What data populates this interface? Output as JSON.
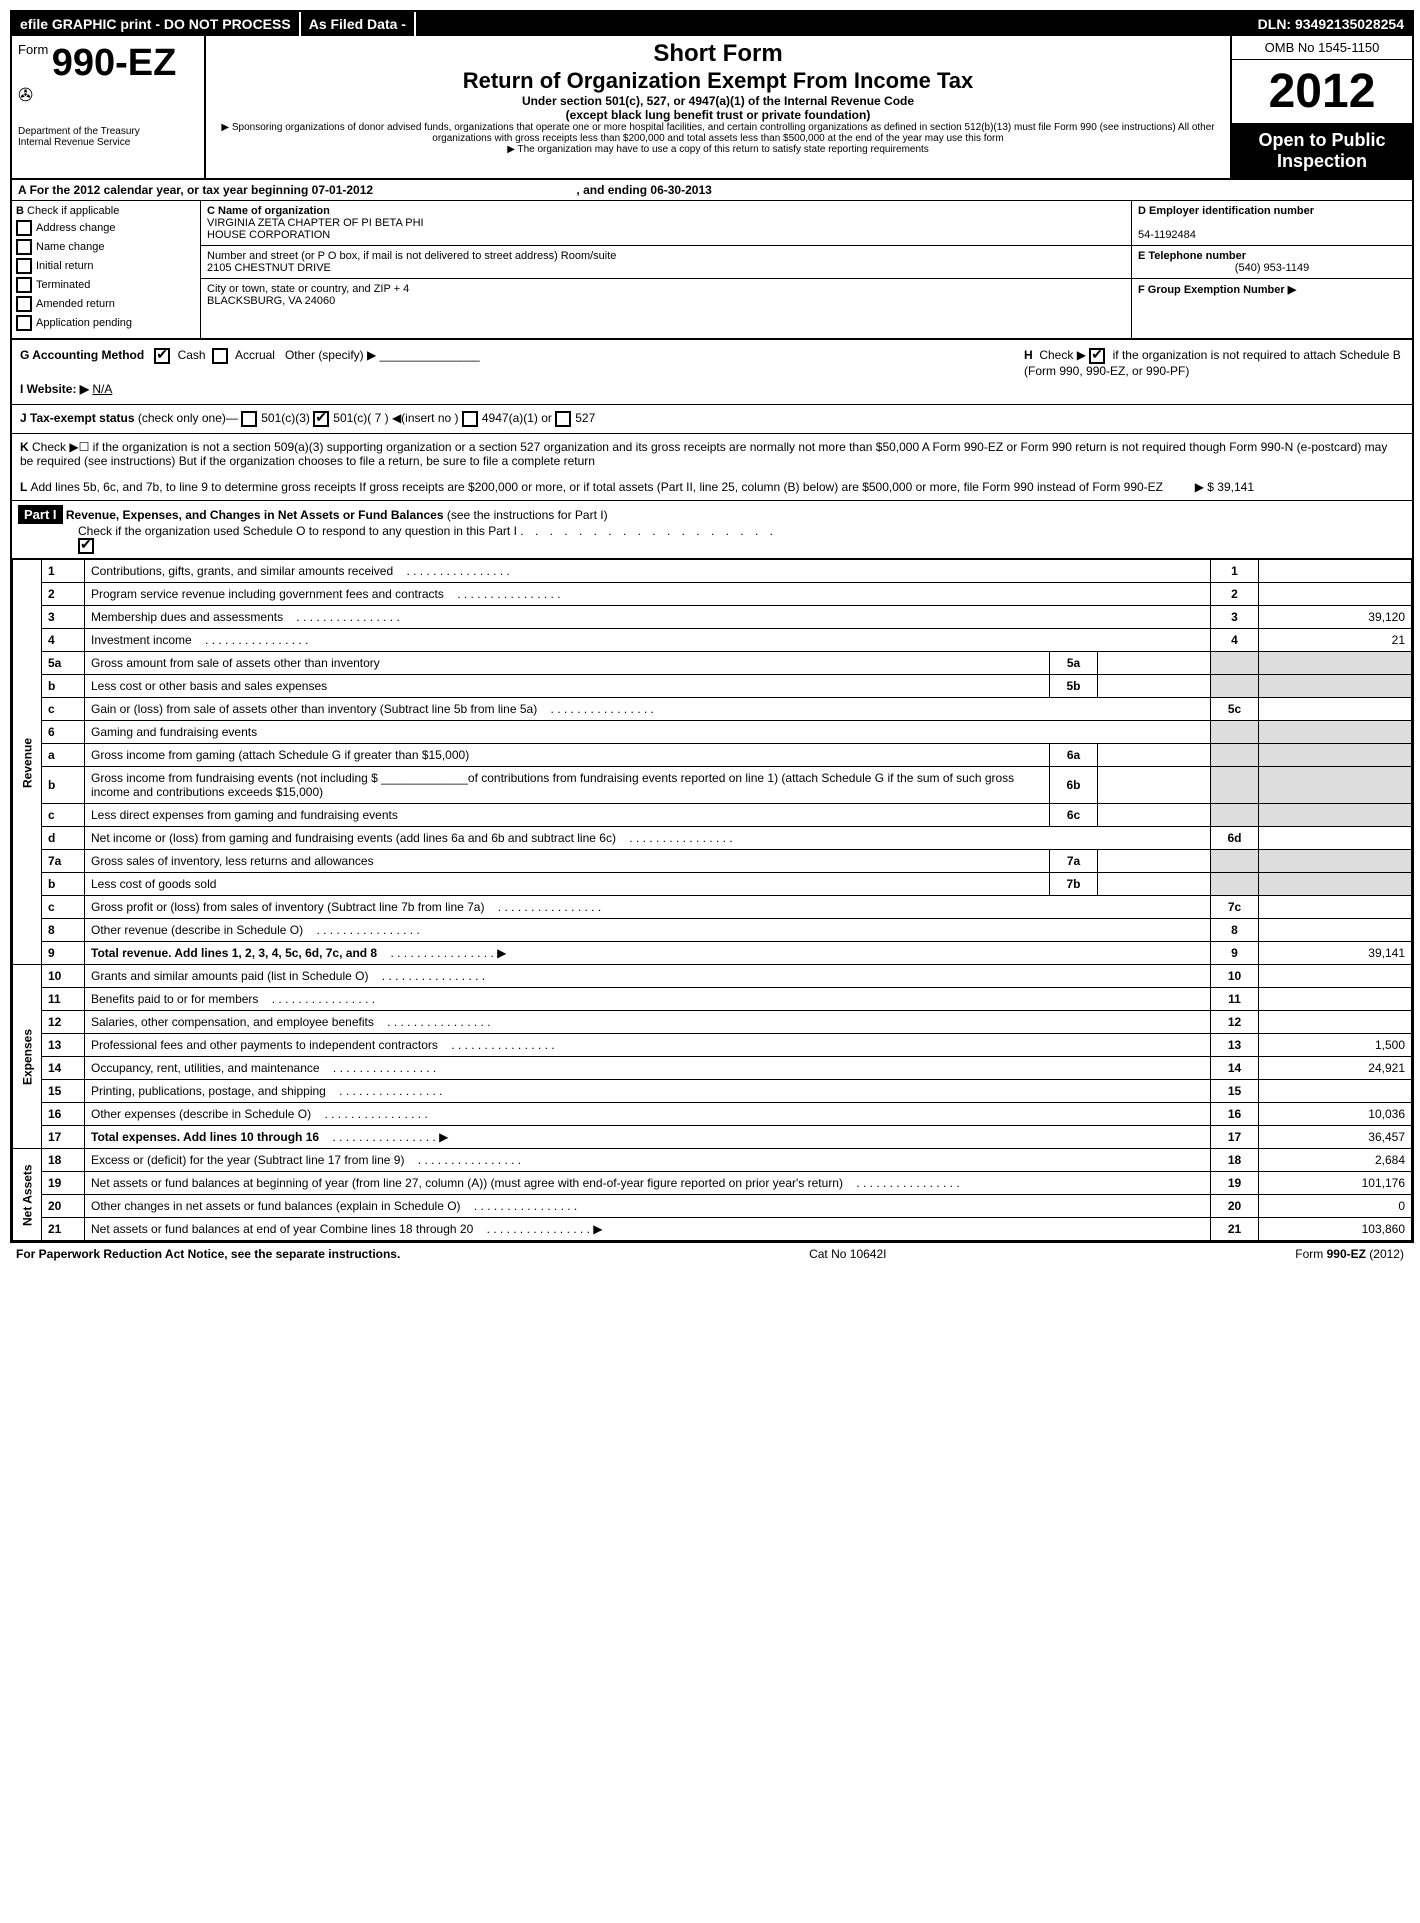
{
  "topbar": {
    "efile": "efile GRAPHIC print - DO NOT PROCESS",
    "asfiled": "As Filed Data -",
    "dln_label": "DLN:",
    "dln": "93492135028254"
  },
  "header": {
    "form_word": "Form",
    "form_number": "990-EZ",
    "dept1": "Department of the Treasury",
    "dept2": "Internal Revenue Service",
    "short_form": "Short Form",
    "main_title": "Return of Organization Exempt From Income Tax",
    "sub1": "Under section 501(c), 527, or 4947(a)(1) of the Internal Revenue Code",
    "sub2": "(except black lung benefit trust or private foundation)",
    "note1": "▶ Sponsoring organizations of donor advised funds, organizations that operate one or more hospital facilities, and certain controlling organizations as defined in section 512(b)(13) must file Form 990 (see instructions) All other organizations with gross receipts less than $200,000 and total assets less than $500,000 at the end of the year may use this form",
    "note2": "▶ The organization may have to use a copy of this return to satisfy state reporting requirements",
    "omb": "OMB No 1545-1150",
    "year": "2012",
    "open": "Open to Public Inspection"
  },
  "rowA": {
    "text": "For the 2012 calendar year, or tax year beginning 07-01-2012",
    "ending": ", and ending 06-30-2013"
  },
  "colB": {
    "label": "Check if applicable",
    "items": [
      "Address change",
      "Name change",
      "Initial return",
      "Terminated",
      "Amended return",
      "Application pending"
    ]
  },
  "colC": {
    "c_label": "C Name of organization",
    "name1": "VIRGINIA ZETA CHAPTER OF PI BETA PHI",
    "name2": "HOUSE CORPORATION",
    "street_label": "Number and street (or P O box, if mail is not delivered to street address) Room/suite",
    "street": "2105 CHESTNUT DRIVE",
    "city_label": "City or town, state or country, and ZIP + 4",
    "city": "BLACKSBURG, VA  24060"
  },
  "colD": {
    "d_label": "D Employer identification number",
    "ein": "54-1192484",
    "e_label": "E Telephone number",
    "phone": "(540) 953-1149",
    "f_label": "F Group Exemption Number ▶"
  },
  "sectionG": {
    "label": "G Accounting Method",
    "cash": "Cash",
    "accrual": "Accrual",
    "other": "Other (specify) ▶"
  },
  "sectionH": {
    "text1": "Check ▶",
    "text2": "if the organization is not required to attach Schedule B (Form 990, 990-EZ, or 990-PF)"
  },
  "sectionI": {
    "label": "I Website: ▶",
    "value": "N/A"
  },
  "sectionJ": {
    "label": "J Tax-exempt status",
    "note": "(check only one)—",
    "opt1": "501(c)(3)",
    "opt2": "501(c)( 7 ) ◀(insert no )",
    "opt3": "4947(a)(1) or",
    "opt4": "527"
  },
  "sectionK": {
    "text": "Check ▶☐ if the organization is not a section 509(a)(3) supporting organization or a section 527 organization and its gross receipts are normally not more than $50,000  A Form 990-EZ or Form 990 return is not required though Form 990-N (e-postcard) may be required (see instructions)  But if the organization chooses to file a return, be sure to file a complete return"
  },
  "sectionL": {
    "text": "Add lines 5b, 6c, and 7b, to line 9 to determine gross receipts  If gross receipts are $200,000 or more, or if total assets (Part II, line 25, column (B) below) are $500,000 or more, file Form 990 instead of Form 990-EZ",
    "amount": "▶ $ 39,141"
  },
  "part1": {
    "header": "Part I",
    "title": "Revenue, Expenses, and Changes in Net Assets or Fund Balances",
    "note": "(see the instructions for Part I)",
    "check_note": "Check if the organization used Schedule O to respond to any question in this Part I"
  },
  "sections": {
    "revenue": "Revenue",
    "expenses": "Expenses",
    "netassets": "Net Assets"
  },
  "lines": [
    {
      "n": "1",
      "desc": "Contributions, gifts, grants, and similar amounts received",
      "ln": "1",
      "amt": ""
    },
    {
      "n": "2",
      "desc": "Program service revenue including government fees and contracts",
      "ln": "2",
      "amt": ""
    },
    {
      "n": "3",
      "desc": "Membership dues and assessments",
      "ln": "3",
      "amt": "39,120"
    },
    {
      "n": "4",
      "desc": "Investment income",
      "ln": "4",
      "amt": "21"
    },
    {
      "n": "5a",
      "desc": "Gross amount from sale of assets other than inventory",
      "sub": "5a",
      "subval": ""
    },
    {
      "n": "b",
      "desc": "Less  cost or other basis and sales expenses",
      "sub": "5b",
      "subval": ""
    },
    {
      "n": "c",
      "desc": "Gain or (loss) from sale of assets other than inventory (Subtract line 5b from line 5a)",
      "ln": "5c",
      "amt": ""
    },
    {
      "n": "6",
      "desc": "Gaming and fundraising events"
    },
    {
      "n": "a",
      "desc": "Gross income from gaming (attach Schedule G if greater than $15,000)",
      "sub": "6a",
      "subval": ""
    },
    {
      "n": "b",
      "desc": "Gross income from fundraising events (not including $ _____________of contributions from fundraising events reported on line 1) (attach Schedule G if the sum of such gross income and contributions exceeds $15,000)",
      "sub": "6b",
      "subval": ""
    },
    {
      "n": "c",
      "desc": "Less  direct expenses from gaming and fundraising events",
      "sub": "6c",
      "subval": ""
    },
    {
      "n": "d",
      "desc": "Net income or (loss) from gaming and fundraising events (add lines 6a and 6b and subtract line 6c)",
      "ln": "6d",
      "amt": ""
    },
    {
      "n": "7a",
      "desc": "Gross sales of inventory, less returns and allowances",
      "sub": "7a",
      "subval": ""
    },
    {
      "n": "b",
      "desc": "Less  cost of goods sold",
      "sub": "7b",
      "subval": ""
    },
    {
      "n": "c",
      "desc": "Gross profit or (loss) from sales of inventory (Subtract line 7b from line 7a)",
      "ln": "7c",
      "amt": ""
    },
    {
      "n": "8",
      "desc": "Other revenue (describe in Schedule O)",
      "ln": "8",
      "amt": ""
    },
    {
      "n": "9",
      "desc": "Total revenue. Add lines 1, 2, 3, 4, 5c, 6d, 7c, and 8",
      "ln": "9",
      "amt": "39,141",
      "bold": true,
      "arrow": true
    },
    {
      "n": "10",
      "desc": "Grants and similar amounts paid (list in Schedule O)",
      "ln": "10",
      "amt": ""
    },
    {
      "n": "11",
      "desc": "Benefits paid to or for members",
      "ln": "11",
      "amt": ""
    },
    {
      "n": "12",
      "desc": "Salaries, other compensation, and employee benefits",
      "ln": "12",
      "amt": ""
    },
    {
      "n": "13",
      "desc": "Professional fees and other payments to independent contractors",
      "ln": "13",
      "amt": "1,500"
    },
    {
      "n": "14",
      "desc": "Occupancy, rent, utilities, and maintenance",
      "ln": "14",
      "amt": "24,921"
    },
    {
      "n": "15",
      "desc": "Printing, publications, postage, and shipping",
      "ln": "15",
      "amt": ""
    },
    {
      "n": "16",
      "desc": "Other expenses (describe in Schedule O)",
      "ln": "16",
      "amt": "10,036"
    },
    {
      "n": "17",
      "desc": "Total expenses. Add lines 10 through 16",
      "ln": "17",
      "amt": "36,457",
      "bold": true,
      "arrow": true
    },
    {
      "n": "18",
      "desc": "Excess or (deficit) for the year (Subtract line 17 from line 9)",
      "ln": "18",
      "amt": "2,684"
    },
    {
      "n": "19",
      "desc": "Net assets or fund balances at beginning of year (from line 27, column (A)) (must agree with end-of-year figure reported on prior year's return)",
      "ln": "19",
      "amt": "101,176"
    },
    {
      "n": "20",
      "desc": "Other changes in net assets or fund balances (explain in Schedule O)",
      "ln": "20",
      "amt": "0"
    },
    {
      "n": "21",
      "desc": "Net assets or fund balances at end of year  Combine lines 18 through 20",
      "ln": "21",
      "amt": "103,860",
      "arrow": true
    }
  ],
  "footer": {
    "left": "For Paperwork Reduction Act Notice, see the separate instructions.",
    "mid": "Cat No 10642I",
    "right": "Form 990-EZ (2012)"
  }
}
